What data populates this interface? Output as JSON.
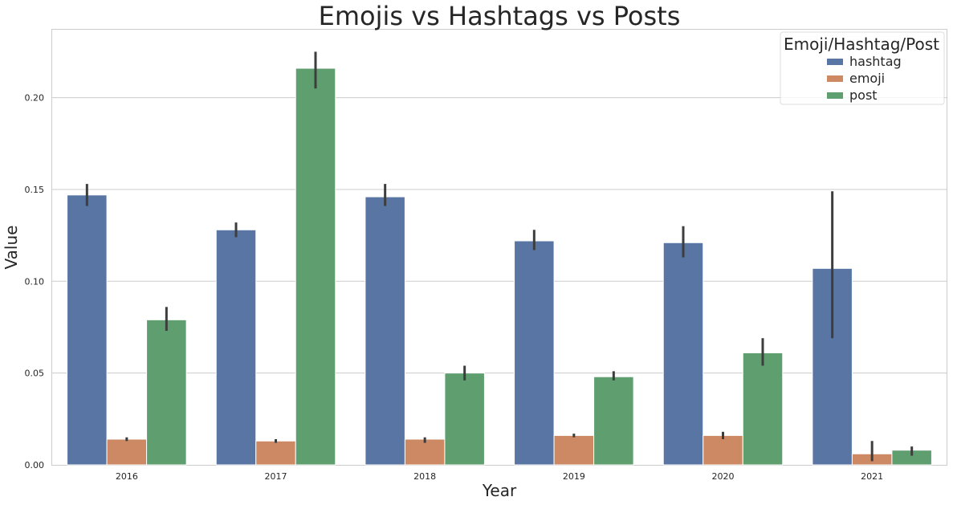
{
  "chart_data": {
    "type": "bar",
    "title": "Emojis vs Hashtags vs Posts",
    "xlabel": "Year",
    "ylabel": "Value",
    "categories": [
      "2016",
      "2017",
      "2018",
      "2019",
      "2020",
      "2021"
    ],
    "ylim": [
      0,
      0.237
    ],
    "yticks": [
      "0.00",
      "0.05",
      "0.10",
      "0.15",
      "0.20"
    ],
    "grid": true,
    "legend": {
      "title": "Emoji/Hashtag/Post",
      "placement": "top-right"
    },
    "series": [
      {
        "name": "hashtag",
        "color": "#5875a4",
        "values": [
          0.147,
          0.128,
          0.146,
          0.122,
          0.121,
          0.107
        ],
        "error_low": [
          0.141,
          0.124,
          0.141,
          0.117,
          0.113,
          0.069
        ],
        "error_high": [
          0.153,
          0.132,
          0.153,
          0.128,
          0.13,
          0.149
        ]
      },
      {
        "name": "emoji",
        "color": "#cc8963",
        "values": [
          0.014,
          0.013,
          0.014,
          0.016,
          0.016,
          0.006
        ],
        "error_low": [
          0.013,
          0.012,
          0.012,
          0.015,
          0.014,
          0.002
        ],
        "error_high": [
          0.015,
          0.014,
          0.015,
          0.017,
          0.018,
          0.013
        ]
      },
      {
        "name": "post",
        "color": "#5f9e6e",
        "values": [
          0.079,
          0.216,
          0.05,
          0.048,
          0.061,
          0.008
        ],
        "error_low": [
          0.073,
          0.205,
          0.046,
          0.046,
          0.054,
          0.005
        ],
        "error_high": [
          0.086,
          0.225,
          0.054,
          0.051,
          0.069,
          0.01
        ]
      }
    ]
  }
}
